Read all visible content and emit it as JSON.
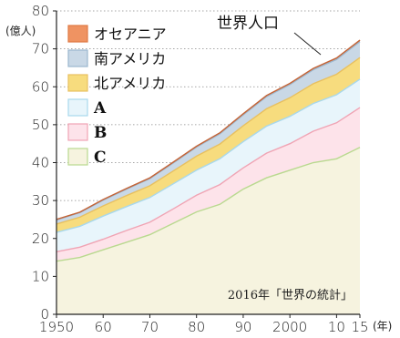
{
  "chart_data": {
    "type": "area",
    "ylabel": "(億人)",
    "xunit": "(年)",
    "source": "2016年「世界の統計」",
    "x": [
      1950,
      1955,
      1960,
      1965,
      1970,
      1975,
      1980,
      1985,
      1990,
      1995,
      2000,
      2005,
      2010,
      2015
    ],
    "x_ticks": [
      1950,
      1960,
      1970,
      1980,
      1990,
      2000,
      2010,
      2015
    ],
    "x_tick_labels": [
      "1950",
      "60",
      "70",
      "80",
      "90",
      "2000",
      "10",
      "15"
    ],
    "y_ticks": [
      0,
      10,
      20,
      30,
      40,
      50,
      60,
      70,
      80
    ],
    "ylim": [
      0,
      80
    ],
    "xlim": [
      1950,
      2015
    ],
    "grid": "horizontal-dotted",
    "legend_position": "top-left",
    "total_label": "世界人口",
    "series": [
      {
        "name": "C",
        "color": "#b9d98f",
        "fill": "#f6f3df",
        "values": [
          14,
          15,
          17,
          19,
          21,
          24,
          27,
          29,
          33,
          36,
          38,
          40,
          41,
          44
        ]
      },
      {
        "name": "B",
        "color": "#f0a4b4",
        "fill": "#fde3ea",
        "values": [
          2.5,
          2.7,
          2.8,
          3.1,
          3.3,
          3.8,
          4.4,
          5.2,
          5.6,
          6.5,
          7.0,
          8.3,
          9.5,
          10.5
        ]
      },
      {
        "name": "A",
        "color": "#a8d8ec",
        "fill": "#e8f5fb",
        "values": [
          5.1,
          5.5,
          6.1,
          6.3,
          6.5,
          6.6,
          6.6,
          6.8,
          6.9,
          7.1,
          7.2,
          7.3,
          7.4,
          7.5
        ]
      },
      {
        "name": "北アメリカ",
        "color": "#e8c060",
        "fill": "#f7dc7e",
        "values": [
          2.2,
          2.4,
          2.7,
          2.9,
          3.1,
          3.4,
          3.7,
          3.9,
          4.2,
          4.6,
          4.9,
          5.2,
          5.4,
          5.7
        ]
      },
      {
        "name": "南アメリカ",
        "color": "#9bb8cf",
        "fill": "#c9d8e6",
        "values": [
          1.1,
          1.2,
          1.5,
          1.7,
          1.9,
          2.1,
          2.4,
          2.7,
          2.9,
          3.2,
          3.5,
          3.7,
          3.9,
          4.2
        ]
      },
      {
        "name": "オセアニア",
        "color": "#e07a45",
        "fill": "#ef9362",
        "values": [
          0.13,
          0.14,
          0.16,
          0.17,
          0.19,
          0.21,
          0.23,
          0.25,
          0.27,
          0.29,
          0.31,
          0.34,
          0.37,
          0.39
        ]
      }
    ]
  }
}
